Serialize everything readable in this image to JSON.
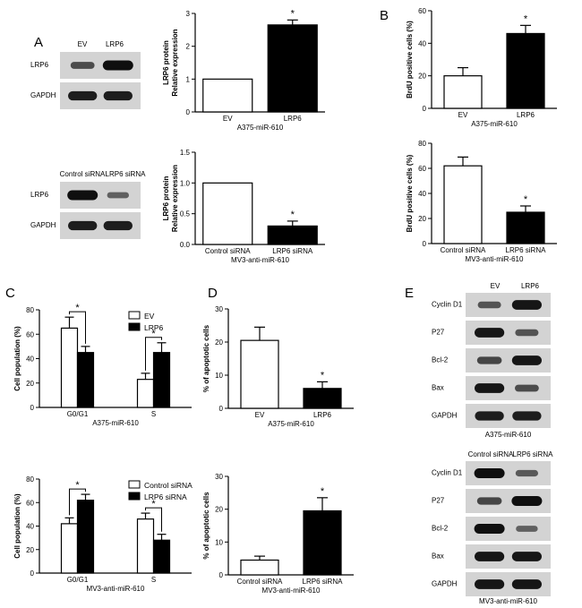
{
  "panel_letters": [
    "A",
    "B",
    "C",
    "D",
    "E"
  ],
  "blots": [
    {
      "lanes": [
        "EV",
        "LRP6"
      ],
      "rows": [
        {
          "label": "LRP6",
          "intensity": [
            0.55,
            1.0
          ]
        },
        {
          "label": "GAPDH",
          "intensity": [
            0.9,
            0.9
          ]
        }
      ],
      "caption": ""
    },
    {
      "lanes": [
        "Control siRNA",
        "LRP6 siRNA"
      ],
      "rows": [
        {
          "label": "LRP6",
          "intensity": [
            1.0,
            0.4
          ]
        },
        {
          "label": "GAPDH",
          "intensity": [
            0.9,
            0.9
          ]
        }
      ],
      "caption": ""
    },
    {
      "lanes": [
        "EV",
        "LRP6"
      ],
      "rows": [
        {
          "label": "Cyclin D1",
          "intensity": [
            0.5,
            0.95
          ]
        },
        {
          "label": "P27",
          "intensity": [
            0.95,
            0.5
          ]
        },
        {
          "label": "Bcl-2",
          "intensity": [
            0.6,
            0.95
          ]
        },
        {
          "label": "Bax",
          "intensity": [
            0.95,
            0.55
          ]
        },
        {
          "label": "GAPDH",
          "intensity": [
            0.9,
            0.9
          ]
        }
      ],
      "caption": "A375-miR-610"
    },
    {
      "lanes": [
        "Control siRNA",
        "LRP6 siRNA"
      ],
      "rows": [
        {
          "label": "Cyclin D1",
          "intensity": [
            1.0,
            0.45
          ]
        },
        {
          "label": "P27",
          "intensity": [
            0.6,
            1.0
          ]
        },
        {
          "label": "Bcl-2",
          "intensity": [
            1.0,
            0.4
          ]
        },
        {
          "label": "Bax",
          "intensity": [
            0.95,
            0.95
          ]
        },
        {
          "label": "GAPDH",
          "intensity": [
            0.95,
            0.95
          ]
        }
      ],
      "caption": "MV3-anti-miR-610"
    }
  ],
  "chart_data": [
    {
      "type": "bar",
      "ylabel": "LRP6 protein Relative expression",
      "xlabel": "A375-miR-610",
      "categories": [
        "EV",
        "LRP6"
      ],
      "values": [
        1.0,
        2.65
      ],
      "errors": [
        0,
        0.15
      ],
      "ylim": [
        0,
        3
      ],
      "yticks": [
        "0",
        "1",
        "2",
        "3"
      ],
      "yticks_values": [
        0,
        1,
        2,
        3
      ],
      "colors": [
        "#ffffff",
        "#000000"
      ],
      "significance": [
        {
          "text": "*",
          "bar": 1
        }
      ]
    },
    {
      "type": "bar",
      "ylabel": "BrdU positive cells (%)",
      "xlabel": "A375-miR-610",
      "categories": [
        "EV",
        "LRP6"
      ],
      "values": [
        20,
        46
      ],
      "errors": [
        5,
        5
      ],
      "ylim": [
        0,
        60
      ],
      "yticks": [
        "0",
        "20",
        "40",
        "60"
      ],
      "yticks_values": [
        0,
        20,
        40,
        60
      ],
      "colors": [
        "#ffffff",
        "#000000"
      ],
      "significance": [
        {
          "text": "*",
          "bar": 1
        }
      ]
    },
    {
      "type": "bar",
      "ylabel": "LRP6 protein Relative expression",
      "xlabel": "MV3-anti-miR-610",
      "categories": [
        "Control siRNA",
        "LRP6 siRNA"
      ],
      "values": [
        1.0,
        0.3
      ],
      "errors": [
        0,
        0.08
      ],
      "ylim": [
        0,
        1.5
      ],
      "yticks": [
        "0.0",
        "0.5",
        "1.0",
        "1.5"
      ],
      "yticks_values": [
        0,
        0.5,
        1.0,
        1.5
      ],
      "colors": [
        "#ffffff",
        "#000000"
      ],
      "significance": [
        {
          "text": "*",
          "bar": 1
        }
      ]
    },
    {
      "type": "bar",
      "ylabel": "BrdU positive cells (%)",
      "xlabel": "MV3-anti-miR-610",
      "categories": [
        "Control siRNA",
        "LRP6 siRNA"
      ],
      "values": [
        62,
        25
      ],
      "errors": [
        7,
        5
      ],
      "ylim": [
        0,
        80
      ],
      "yticks": [
        "0",
        "20",
        "40",
        "60",
        "80"
      ],
      "yticks_values": [
        0,
        20,
        40,
        60,
        80
      ],
      "colors": [
        "#ffffff",
        "#000000"
      ],
      "significance": [
        {
          "text": "*",
          "bar": 1
        }
      ]
    },
    {
      "type": "bar",
      "ylabel": "Cell population (%)",
      "xlabel": "A375-miR-610",
      "categories": [
        "G0/G1",
        "S"
      ],
      "series": [
        {
          "name": "EV",
          "values": [
            65,
            23
          ],
          "errors": [
            9,
            5
          ],
          "color": "#ffffff"
        },
        {
          "name": "LRP6",
          "values": [
            45,
            45
          ],
          "errors": [
            5,
            8
          ],
          "color": "#000000"
        }
      ],
      "ylim": [
        0,
        80
      ],
      "yticks": [
        "0",
        "20",
        "40",
        "60",
        "80"
      ],
      "yticks_values": [
        0,
        20,
        40,
        60,
        80
      ],
      "legend": "top-right",
      "significance": [
        {
          "text": "*",
          "category": 0
        },
        {
          "text": "*",
          "category": 1
        }
      ]
    },
    {
      "type": "bar",
      "ylabel": "% of apoptotic cells",
      "xlabel": "A375-miR-610",
      "categories": [
        "EV",
        "LRP6"
      ],
      "values": [
        20.5,
        6
      ],
      "errors": [
        4,
        2
      ],
      "ylim": [
        0,
        30
      ],
      "yticks": [
        "0",
        "10",
        "20",
        "30"
      ],
      "yticks_values": [
        0,
        10,
        20,
        30
      ],
      "colors": [
        "#ffffff",
        "#000000"
      ],
      "significance": [
        {
          "text": "*",
          "bar": 1
        }
      ]
    },
    {
      "type": "bar",
      "ylabel": "Cell population (%)",
      "xlabel": "MV3-anti-miR-610",
      "categories": [
        "G0/G1",
        "S"
      ],
      "series": [
        {
          "name": "Control siRNA",
          "values": [
            42,
            46
          ],
          "errors": [
            5,
            5
          ],
          "color": "#ffffff"
        },
        {
          "name": "LRP6 siRNA",
          "values": [
            62,
            28
          ],
          "errors": [
            5,
            5
          ],
          "color": "#000000"
        }
      ],
      "ylim": [
        0,
        80
      ],
      "yticks": [
        "0",
        "20",
        "40",
        "60",
        "80"
      ],
      "yticks_values": [
        0,
        20,
        40,
        60,
        80
      ],
      "legend": "top-right",
      "significance": [
        {
          "text": "*",
          "category": 0
        },
        {
          "text": "*",
          "category": 1
        }
      ]
    },
    {
      "type": "bar",
      "ylabel": "% of apoptotic cells",
      "xlabel": "MV3-anti-miR-610",
      "categories": [
        "Control siRNA",
        "LRP6 siRNA"
      ],
      "values": [
        4.5,
        19.5
      ],
      "errors": [
        1.2,
        4
      ],
      "ylim": [
        0,
        30
      ],
      "yticks": [
        "0",
        "10",
        "20",
        "30"
      ],
      "yticks_values": [
        0,
        10,
        20,
        30
      ],
      "colors": [
        "#ffffff",
        "#000000"
      ],
      "significance": [
        {
          "text": "*",
          "bar": 1
        }
      ]
    }
  ]
}
